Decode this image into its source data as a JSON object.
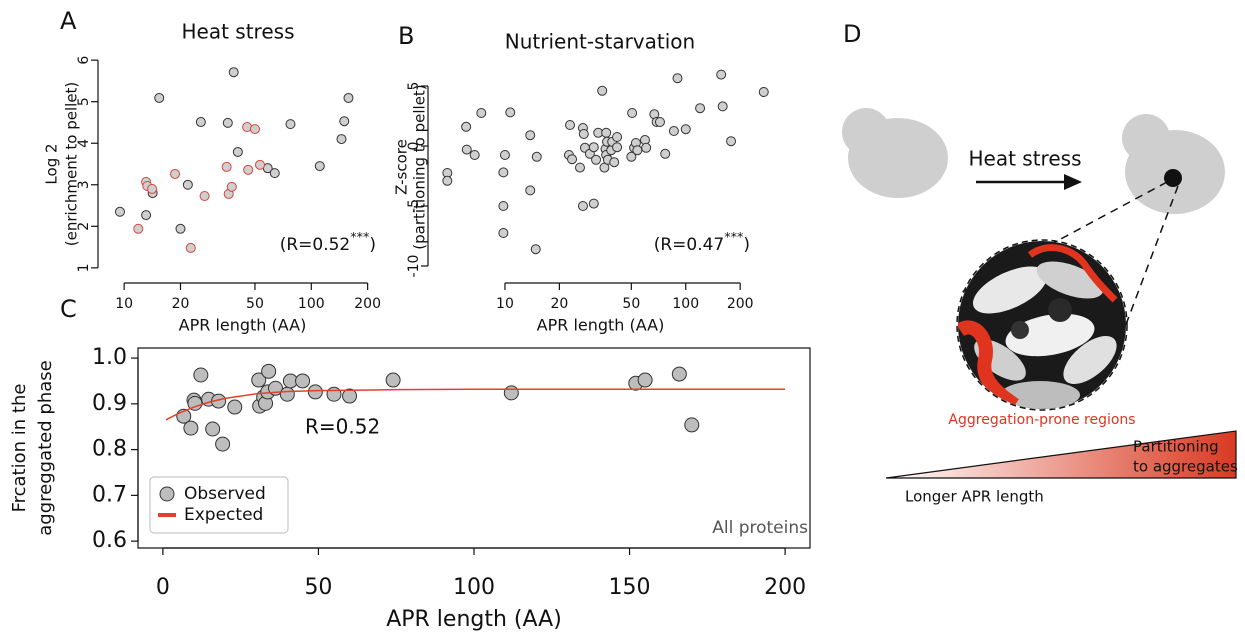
{
  "chart_data": [
    {
      "type": "scatter",
      "panel": "A",
      "title": "Heat stress",
      "x_label": "APR length (AA)",
      "y_label": [
        "Log 2",
        "(enrichment to pellet)"
      ],
      "xscale": "log",
      "xlim": [
        8,
        230
      ],
      "xticks": [
        10,
        20,
        50,
        100,
        200
      ],
      "ylim": [
        0.9,
        6.1
      ],
      "yticks": [
        1,
        2,
        3,
        4,
        5,
        6
      ],
      "fill": "#cfcfcf",
      "annotations": [
        [
          "(R=0.52",
          "***",
          ")"
        ]
      ],
      "series": [
        {
          "color": "#333333",
          "x": [
            9.5,
            13.1,
            14.2,
            15.4,
            21.9,
            20,
            25.7,
            35.8,
            38.5,
            40.5,
            58.5,
            63.8,
            77.4,
            111,
            145,
            150,
            158
          ],
          "values": [
            2.35,
            2.27,
            2.8,
            5.09,
            3.0,
            1.94,
            4.51,
            4.49,
            5.71,
            3.79,
            3.4,
            3.28,
            4.46,
            3.45,
            4.1,
            4.53,
            5.09
          ]
        },
        {
          "color": "#d6453b",
          "x": [
            11.9,
            13.1,
            13.3,
            14.1,
            18.7,
            22.7,
            26.9,
            35.3,
            36.2,
            37.6,
            45.4,
            50,
            53.2,
            46
          ],
          "values": [
            1.94,
            3.07,
            2.97,
            2.9,
            3.26,
            1.48,
            2.73,
            3.43,
            2.78,
            2.95,
            4.39,
            4.34,
            3.48,
            3.36
          ]
        }
      ]
    },
    {
      "type": "scatter",
      "panel": "B",
      "title": "Nutrient-starvation",
      "x_label": "APR length (AA)",
      "y_label": [
        "Z-score",
        "(partitioning to pellet)"
      ],
      "xscale": "log",
      "xlim": [
        4,
        285
      ],
      "xticks": [
        10,
        20,
        50,
        100,
        200
      ],
      "ylim": [
        -10.5,
        7
      ],
      "yticks": [
        -10,
        -5,
        0,
        5
      ],
      "fill": "#cfcfcf",
      "annotations": [
        [
          "(R=0.47",
          "***",
          ")"
        ]
      ],
      "series": [
        {
          "color": "#333333",
          "x": [
            4.8,
            4.8,
            6.1,
            6.15,
            6.8,
            7.4,
            9.8,
            9.8,
            9.8,
            10,
            10.7,
            13.8,
            13.8,
            15,
            14.8,
            22.9,
            22.6,
            23.5,
            26,
            27,
            27.3,
            27,
            31,
            27.7,
            29.5,
            31,
            31.9,
            32.8,
            34.5,
            36,
            36.3,
            36.7,
            36.3,
            35.5,
            37.1,
            38.7,
            39.2,
            40.2,
            41.7,
            41.7,
            50.5,
            50,
            51.8,
            53,
            54,
            59.5,
            60.4,
            67,
            69,
            72,
            77,
            86,
            90,
            100,
            120,
            157,
            160,
            178,
            270
          ],
          "values": [
            -2.25,
            -2.9,
            1.6,
            -0.3,
            -0.75,
            2.75,
            -2.2,
            -5,
            -7.25,
            -0.75,
            2.8,
            0.9,
            -3.7,
            -0.9,
            -8.6,
            1.75,
            -0.75,
            -1.1,
            -1.8,
            1.5,
            1.0,
            -5,
            -4.8,
            -0.15,
            -0.65,
            -0.1,
            -1.15,
            1.1,
            4.6,
            -0.25,
            1.1,
            0.35,
            -0.75,
            -1.8,
            -1.15,
            -0.35,
            0.35,
            -1.35,
            0.75,
            -0.1,
            2.75,
            -0.9,
            -0.15,
            0.25,
            -0.35,
            0.5,
            -0.15,
            2.65,
            2.0,
            2.0,
            -0.65,
            1.25,
            5.65,
            1.4,
            3.15,
            5.95,
            3.3,
            0.4,
            4.5
          ]
        }
      ]
    },
    {
      "type": "scatter",
      "panel": "C",
      "x_label": "APR length (AA)",
      "y_label": [
        "Frcation in the",
        "aggreggated phase"
      ],
      "xlim": [
        -8,
        208
      ],
      "xticks": [
        0,
        50,
        100,
        150,
        200
      ],
      "ylim": [
        0.585,
        1.022
      ],
      "yticks": [
        0.6,
        0.7,
        0.8,
        0.9,
        {
          "value": 1,
          "label": "1.0"
        }
      ],
      "fill": "#bdbdbd",
      "frame": true,
      "legend": "lower left",
      "annotations": [
        "R=0.52",
        "All proteins"
      ],
      "series": [
        {
          "name": "Observed",
          "color": "#333333",
          "x": [
            6.7,
            9,
            10,
            10.3,
            12.2,
            14.7,
            16,
            17.9,
            19.2,
            23.1,
            30.8,
            31.1,
            32.4,
            33,
            34,
            33.7,
            36.2,
            40,
            41,
            44.9,
            49,
            55,
            60,
            74,
            112,
            152,
            155,
            166,
            170
          ],
          "values": [
            0.873,
            0.847,
            0.908,
            0.901,
            0.963,
            0.91,
            0.845,
            0.906,
            0.812,
            0.893,
            0.952,
            0.895,
            0.915,
            0.901,
            0.971,
            0.926,
            0.934,
            0.921,
            0.95,
            0.95,
            0.926,
            0.921,
            0.917,
            0.952,
            0.924,
            0.945,
            0.952,
            0.965,
            0.854
          ]
        },
        {
          "name": "Expected",
          "type": "line",
          "color": "#e2412a",
          "x": [
            1,
            5,
            10,
            15,
            20,
            30,
            40,
            50,
            75,
            100,
            150,
            200
          ],
          "values": [
            0.865,
            0.879,
            0.893,
            0.904,
            0.912,
            0.922,
            0.927,
            0.929,
            0.931,
            0.932,
            0.932,
            0.932
          ]
        }
      ]
    }
  ],
  "diagram": {
    "panel": "D",
    "arrow_label": "Heat stress",
    "inset_label": "Aggregation-prone regions",
    "gradient_label": [
      "Partitioning",
      "to aggregates"
    ],
    "axis_label": "Longer APR length"
  }
}
